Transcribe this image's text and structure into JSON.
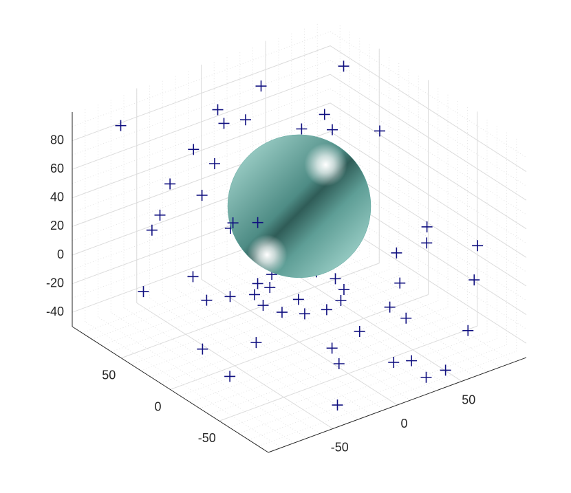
{
  "chart_data": {
    "type": "scatter3",
    "xlim": [
      -100,
      100
    ],
    "ylim": [
      -100,
      100
    ],
    "zlim": [
      -50,
      100
    ],
    "xticks": [
      -50,
      0,
      50
    ],
    "yticks": [
      -50,
      0,
      50
    ],
    "zticks": [
      -40,
      -20,
      0,
      20,
      40,
      60,
      80
    ],
    "grid": true,
    "marker": "+",
    "color": "#101080",
    "sphere": {
      "center": [
        0,
        0,
        45
      ],
      "radius": 50,
      "color": "#5fa8a0"
    },
    "x": [
      80,
      -60,
      20,
      -85,
      45,
      10,
      -30,
      70,
      -70,
      55,
      -10,
      90,
      -45,
      30,
      0,
      -90,
      65,
      -20,
      40,
      -55,
      15,
      85,
      -75,
      50,
      -35,
      25,
      -5,
      75,
      -65,
      35,
      5,
      -80,
      60,
      -25,
      95,
      -50,
      20,
      -15,
      70,
      -40,
      45,
      -88,
      10,
      80,
      -30,
      55,
      -60,
      30,
      0,
      -70,
      28,
      24,
      14,
      0,
      -14,
      -24,
      -28,
      -24,
      -14,
      0,
      14,
      24
    ],
    "y": [
      60,
      80,
      -70,
      20,
      -40,
      90,
      -80,
      10,
      50,
      -20,
      70,
      -60,
      40,
      -90,
      30,
      -10,
      80,
      60,
      -50,
      -30,
      90,
      -70,
      0,
      40,
      -85,
      20,
      -40,
      65,
      -15,
      85,
      -55,
      45,
      -30,
      75,
      -5,
      -65,
      50,
      35,
      -80,
      15,
      -90,
      -45,
      5,
      -25,
      55,
      70,
      -35,
      -75,
      25,
      90,
      0,
      14,
      24,
      28,
      24,
      14,
      0,
      -14,
      -24,
      -28,
      -24,
      -14
    ],
    "z": [
      90,
      -30,
      -40,
      80,
      15,
      60,
      -20,
      70,
      40,
      -35,
      85,
      -10,
      50,
      -45,
      -25,
      30,
      -40,
      55,
      0,
      65,
      -15,
      20,
      -30,
      75,
      -45,
      5,
      -35,
      45,
      10,
      80,
      -20,
      35,
      -40,
      60,
      -10,
      25,
      -5,
      95,
      -30,
      40,
      -45,
      -25,
      70,
      15,
      -35,
      50,
      -15,
      -40,
      30,
      85,
      -15,
      -15,
      -15,
      -15,
      -15,
      -15,
      -15,
      -15,
      -15,
      -15,
      -15,
      -15
    ]
  }
}
